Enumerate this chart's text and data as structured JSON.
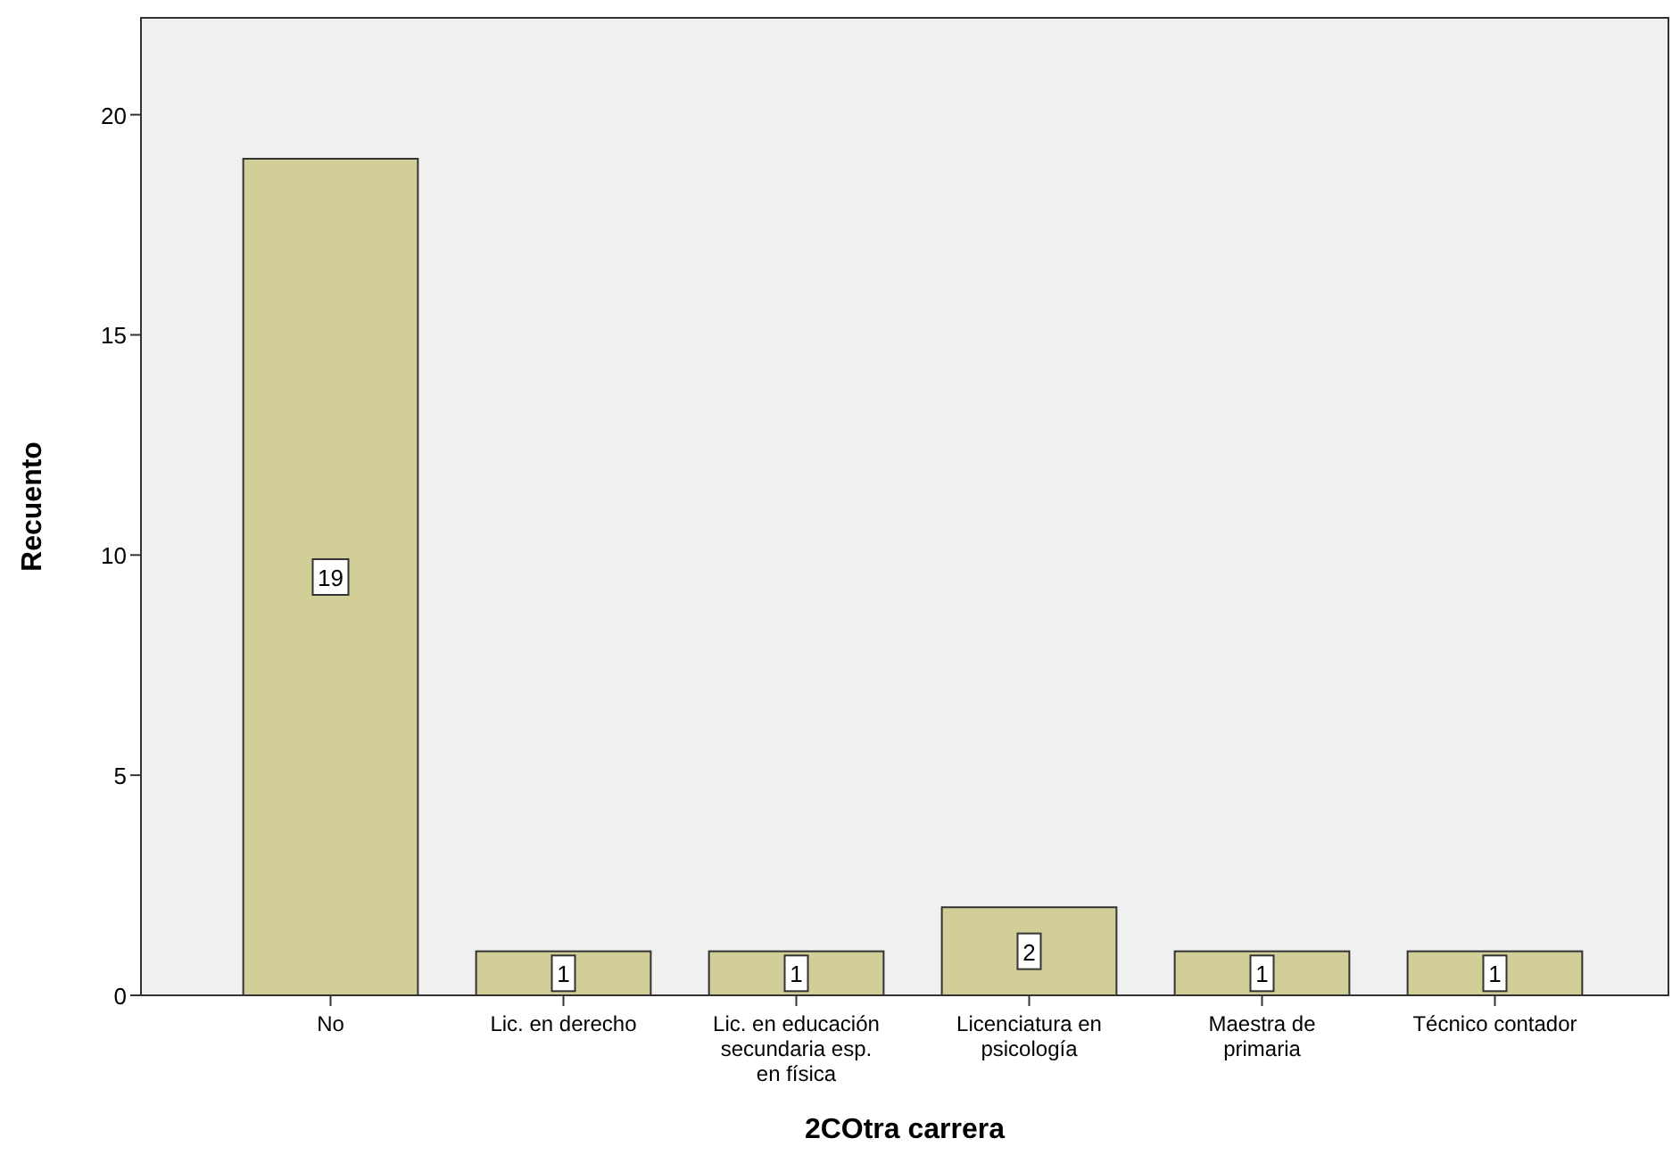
{
  "chart_data": {
    "type": "bar",
    "xlabel": "2COtra carrera",
    "ylabel": "Recuento",
    "categories": [
      "No",
      "Lic. en derecho",
      "Lic. en educación secundaria esp. en física",
      "Licenciatura en psicología",
      "Maestra de primaria",
      "Técnico contador"
    ],
    "values": [
      19,
      1,
      1,
      2,
      1,
      1
    ],
    "color": "#d2ce98",
    "ylim": [
      0,
      22.2
    ],
    "yticks": [
      0,
      5,
      10,
      15,
      20
    ],
    "data_labels": true,
    "grid": false
  }
}
